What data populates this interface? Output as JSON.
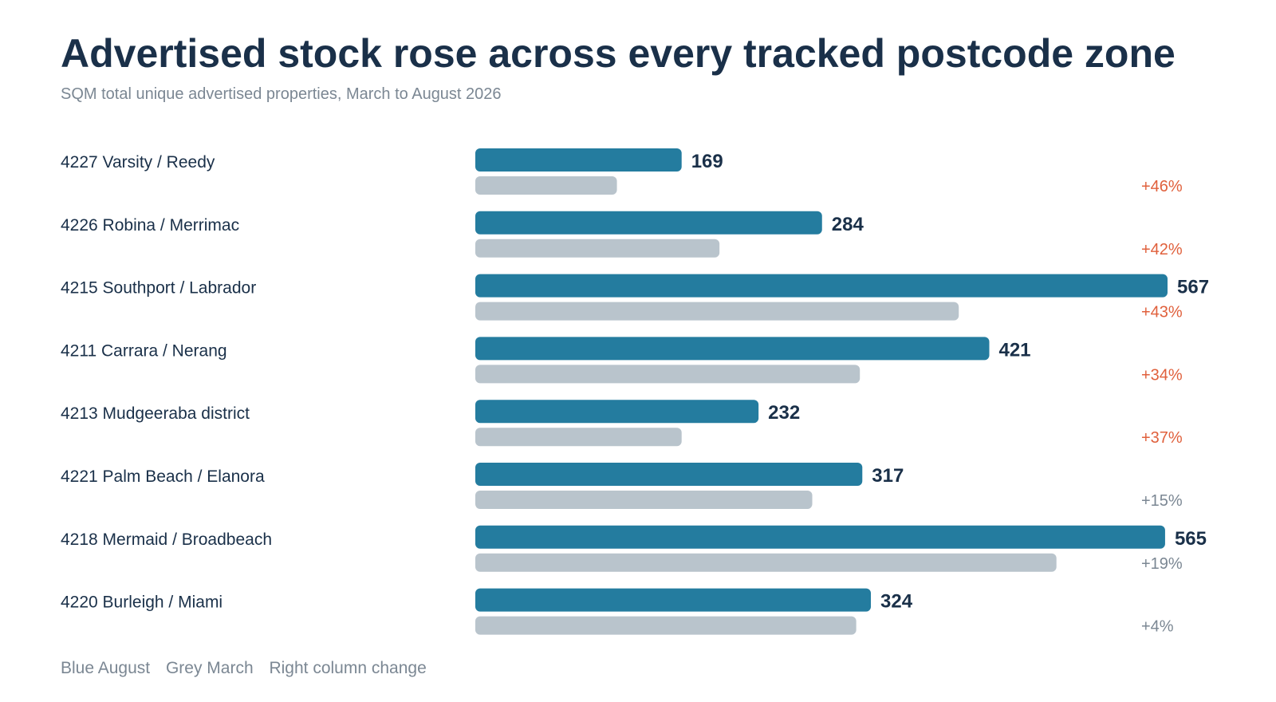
{
  "header": {
    "title": "Advertised stock rose across every tracked postcode zone",
    "subtitle": "SQM total unique advertised properties, March to August 2026"
  },
  "legend": {
    "august": "Blue August",
    "march": "Grey March",
    "change": "Right column change"
  },
  "colors": {
    "august_bar": "#247c9f",
    "march_bar": "#b9c4cc",
    "change_high": "#e0603c",
    "change_low": "#7b8793"
  },
  "chart_data": {
    "type": "bar",
    "orientation": "horizontal",
    "title": "Advertised stock rose across every tracked postcode zone",
    "subtitle": "SQM total unique advertised properties, March to August 2026",
    "categories": [
      "4227 Varsity / Reedy",
      "4226 Robina / Merrimac",
      "4215 Southport / Labrador",
      "4211 Carrara / Nerang",
      "4213 Mudgeeraba district",
      "4221 Palm Beach / Elanora",
      "4218 Mermaid / Broadbeach",
      "4220 Burleigh / Miami"
    ],
    "series": [
      {
        "name": "August",
        "values": [
          169,
          284,
          567,
          421,
          232,
          317,
          565,
          324
        ]
      },
      {
        "name": "March",
        "values": [
          116,
          200,
          396,
          315,
          169,
          276,
          476,
          312
        ]
      }
    ],
    "changes": [
      "+46%",
      "+42%",
      "+43%",
      "+34%",
      "+37%",
      "+15%",
      "+19%",
      "+4%"
    ],
    "change_highlighted": [
      true,
      true,
      true,
      true,
      true,
      false,
      false,
      false
    ],
    "xlim": [
      0,
      567
    ],
    "grid": false
  }
}
